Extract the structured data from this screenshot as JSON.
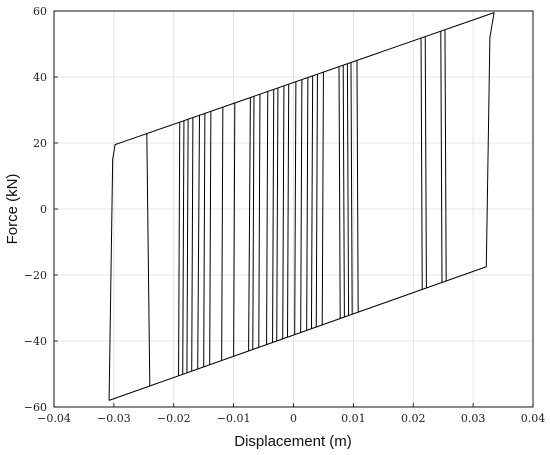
{
  "chart_data": {
    "type": "line",
    "title": "",
    "xlabel": "Displacement (m)",
    "ylabel": "Force (kN)",
    "xlim": [
      -0.04,
      0.04
    ],
    "ylim": [
      -60,
      60
    ],
    "xticks": [
      -0.04,
      -0.03,
      -0.02,
      -0.01,
      0,
      0.01,
      0.02,
      0.03,
      0.04
    ],
    "xtick_labels": [
      "−0.04",
      "−0.03",
      "−0.02",
      "−0.01",
      "0",
      "0.01",
      "0.02",
      "0.03",
      "0.04"
    ],
    "yticks": [
      -60,
      -40,
      -20,
      0,
      20,
      40,
      60
    ],
    "ytick_labels": [
      "−60",
      "−40",
      "−20",
      "0",
      "20",
      "40",
      "60"
    ],
    "grid": true,
    "color": "#000000",
    "series": [
      {
        "x": [
          -0.0308,
          -0.0302,
          -0.0298,
          0.0335,
          0.0328,
          0.0322,
          -0.0308
        ],
        "y": [
          -58.0,
          15.0,
          19.5,
          59.5,
          52.0,
          -17.5,
          -58.0
        ]
      }
    ],
    "unloading_lines": [
      [
        -0.024,
        -0.0245
      ],
      [
        -0.0192,
        -0.019
      ],
      [
        -0.0185,
        -0.0183
      ],
      [
        -0.0178,
        -0.0176
      ],
      [
        -0.017,
        -0.0168
      ],
      [
        -0.016,
        -0.0157
      ],
      [
        -0.015,
        -0.0148
      ],
      [
        -0.014,
        -0.0138
      ],
      [
        -0.012,
        -0.0118
      ],
      [
        -0.01,
        -0.0098
      ],
      [
        -0.0075,
        -0.0072
      ],
      [
        -0.0068,
        -0.0066
      ],
      [
        -0.0058,
        -0.0056
      ],
      [
        -0.0045,
        -0.0043
      ],
      [
        -0.0035,
        -0.0033
      ],
      [
        -0.0028,
        -0.0026
      ],
      [
        -0.0018,
        -0.0016
      ],
      [
        -0.001,
        -0.0008
      ],
      [
        0.0002,
        0.0004
      ],
      [
        0.0012,
        0.0014
      ],
      [
        0.0022,
        0.0024
      ],
      [
        0.003,
        0.0032
      ],
      [
        0.0038,
        0.004
      ],
      [
        0.0048,
        0.005
      ],
      [
        0.0078,
        0.0076
      ],
      [
        0.0085,
        0.0083
      ],
      [
        0.0092,
        0.009
      ],
      [
        0.0098,
        0.0096
      ],
      [
        0.0108,
        0.0106
      ],
      [
        0.0215,
        0.0213
      ],
      [
        0.0222,
        0.022
      ],
      [
        0.0248,
        0.0246
      ],
      [
        0.0255,
        0.0253
      ]
    ]
  }
}
